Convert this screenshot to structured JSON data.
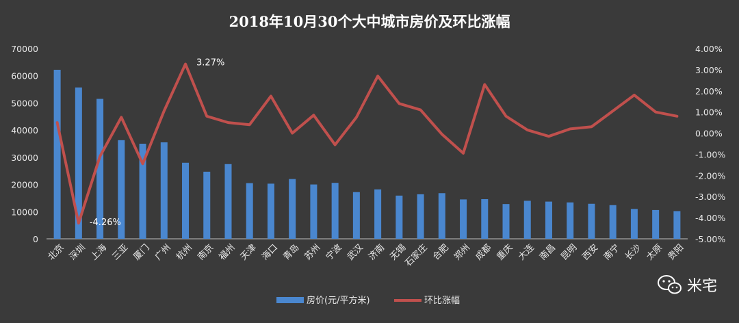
{
  "chart_data": {
    "type": "bar",
    "title": "2018年10月30个大中城市房价及环比涨幅",
    "categories": [
      "北京",
      "深圳",
      "上海",
      "三亚",
      "厦门",
      "广州",
      "杭州",
      "南京",
      "福州",
      "天津",
      "海口",
      "青岛",
      "苏州",
      "宁波",
      "武汉",
      "济南",
      "无锡",
      "石家庄",
      "合肥",
      "郑州",
      "成都",
      "重庆",
      "大连",
      "南昌",
      "昆明",
      "西安",
      "南宁",
      "长沙",
      "太原",
      "贵阳"
    ],
    "series": [
      {
        "name": "房价(元/平方米)",
        "type": "bar",
        "axis": "left",
        "values": [
          62200,
          55700,
          51500,
          36300,
          35000,
          35500,
          28000,
          24700,
          27500,
          20500,
          20300,
          22000,
          20000,
          20600,
          17200,
          18200,
          15900,
          16400,
          16800,
          14500,
          14600,
          12800,
          14000,
          13700,
          13400,
          12900,
          12400,
          11000,
          10600,
          10200
        ]
      },
      {
        "name": "环比涨幅",
        "type": "line",
        "axis": "right",
        "values": [
          0.5,
          -4.26,
          -1.1,
          0.75,
          -1.45,
          1.05,
          3.27,
          0.8,
          0.5,
          0.4,
          1.75,
          0.0,
          0.85,
          -0.55,
          0.75,
          2.7,
          1.4,
          1.1,
          -0.05,
          -0.95,
          2.3,
          0.8,
          0.15,
          -0.15,
          0.2,
          0.3,
          1.05,
          1.8,
          1.0,
          0.8
        ]
      }
    ],
    "y_left": {
      "min": 0,
      "max": 70000,
      "ticks": [
        "0",
        "10000",
        "20000",
        "30000",
        "40000",
        "50000",
        "60000",
        "70000"
      ]
    },
    "y_right": {
      "min": -5,
      "max": 4,
      "ticks": [
        "-5.00%",
        "-4.00%",
        "-3.00%",
        "-2.00%",
        "-1.00%",
        "0.00%",
        "1.00%",
        "2.00%",
        "3.00%",
        "4.00%"
      ]
    },
    "annotations": [
      {
        "label": "3.27%",
        "index": 6
      },
      {
        "label": "-4.26%",
        "index": 1
      }
    ],
    "legend_position": "bottom",
    "grid": false,
    "colors": {
      "background": "#3a3a3a",
      "bar": "#4a87cf",
      "line": "#c0504d",
      "text": "#e8e8e8"
    }
  },
  "brand": {
    "name": "米宅"
  }
}
